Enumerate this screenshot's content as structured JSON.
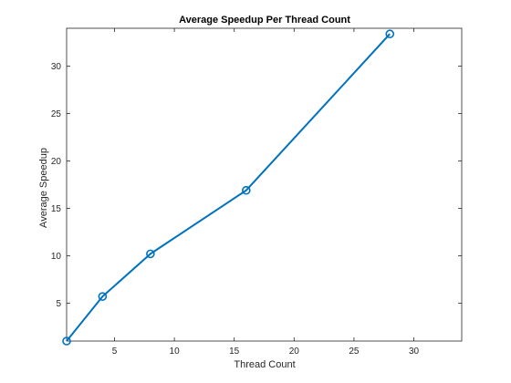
{
  "chart_data": {
    "type": "line",
    "title": "Average Speedup Per Thread Count",
    "xlabel": "Thread Count",
    "ylabel": "Average Speedup",
    "xlim": [
      1,
      34
    ],
    "ylim": [
      1,
      34
    ],
    "xticks": [
      5,
      10,
      15,
      20,
      25,
      30
    ],
    "yticks": [
      5,
      10,
      15,
      20,
      25,
      30
    ],
    "grid": false,
    "marker": "circle",
    "series": [
      {
        "color": "#0072bd",
        "x": [
          1,
          4,
          8,
          16,
          28
        ],
        "y": [
          1.0,
          5.7,
          10.2,
          16.9,
          33.4
        ]
      }
    ]
  }
}
